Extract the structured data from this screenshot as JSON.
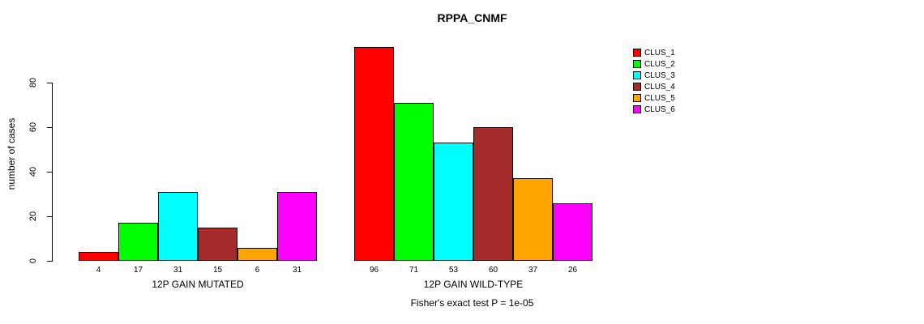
{
  "title": "RPPA_CNMF",
  "ylabel": "number of cases",
  "footer": "Fisher's exact test P = 1e-05",
  "chart_data": {
    "type": "bar",
    "title": "RPPA_CNMF",
    "xlabel_groups": [
      "12P GAIN MUTATED",
      "12P GAIN WILD-TYPE"
    ],
    "ylabel": "number of cases",
    "yticks": [
      0,
      20,
      40,
      60,
      80
    ],
    "ylim": [
      0,
      96
    ],
    "grid": false,
    "legend_position": "right",
    "series_names": [
      "CLUS_1",
      "CLUS_2",
      "CLUS_3",
      "CLUS_4",
      "CLUS_5",
      "CLUS_6"
    ],
    "colors": [
      "#FF0000",
      "#00FF00",
      "#00FFFF",
      "#A52A2A",
      "#FFA500",
      "#FF00FF"
    ],
    "groups": [
      {
        "label": "12P GAIN MUTATED",
        "values": [
          4,
          17,
          31,
          15,
          6,
          31
        ]
      },
      {
        "label": "12P GAIN WILD-TYPE",
        "values": [
          96,
          71,
          53,
          60,
          37,
          26
        ]
      }
    ],
    "annotation": "Fisher's exact test P = 1e-05"
  },
  "legend": {
    "items": [
      {
        "label": "CLUS_1",
        "color": "#FF0000"
      },
      {
        "label": "CLUS_2",
        "color": "#00FF00"
      },
      {
        "label": "CLUS_3",
        "color": "#00FFFF"
      },
      {
        "label": "CLUS_4",
        "color": "#A52A2A"
      },
      {
        "label": "CLUS_5",
        "color": "#FFA500"
      },
      {
        "label": "CLUS_6",
        "color": "#FF00FF"
      }
    ]
  }
}
